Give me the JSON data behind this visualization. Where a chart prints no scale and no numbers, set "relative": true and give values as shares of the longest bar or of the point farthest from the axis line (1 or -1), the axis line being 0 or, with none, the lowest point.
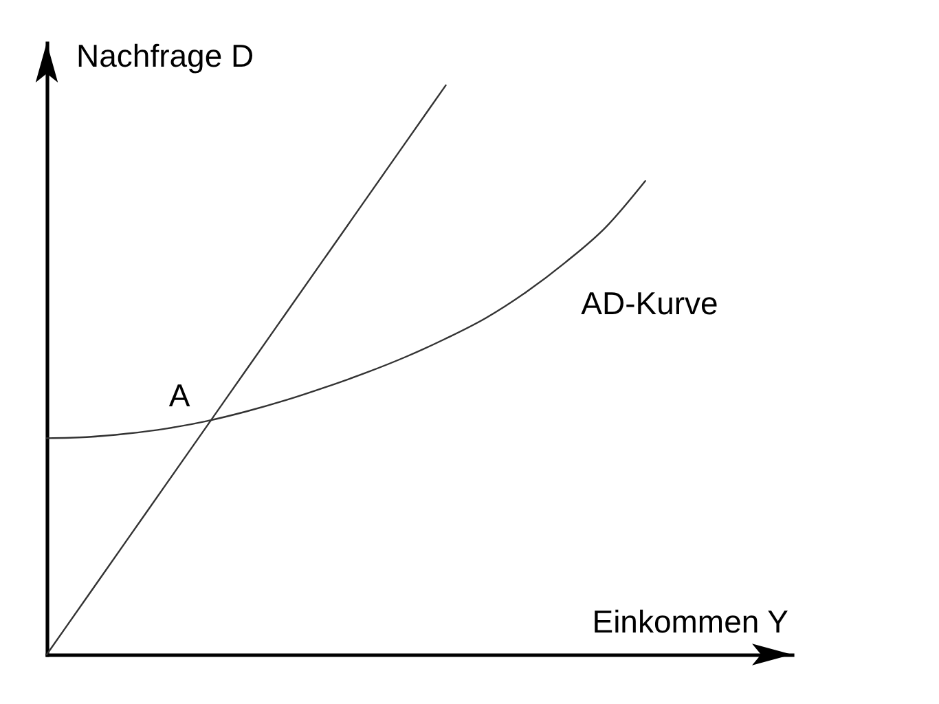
{
  "chart_data": {
    "type": "line",
    "xlabel": "Einkommen Y",
    "ylabel": "Nachfrage D",
    "annotations": [
      "A"
    ],
    "categories": [
      null,
      null,
      null,
      null,
      null,
      null,
      null,
      null,
      null,
      null,
      null,
      null,
      null,
      null,
      null,
      null
    ],
    "relative": true,
    "series": [
      {
        "color": "#333333",
        "values": [
          0,
          0.1,
          0.2,
          0.3,
          0.4,
          0.5,
          0.6,
          0.7,
          0.8,
          0.9,
          1,
          null,
          null,
          null,
          null,
          null
        ]
      },
      {
        "name": "AD-Kurve",
        "color": "#333333",
        "values": [
          0.38,
          0.382,
          0.388,
          0.397,
          0.41,
          0.427,
          0.447,
          0.47,
          0.495,
          0.523,
          0.555,
          0.591,
          0.636,
          0.689,
          0.75,
          0.832
        ]
      }
    ],
    "legend": false,
    "marker": "none"
  }
}
